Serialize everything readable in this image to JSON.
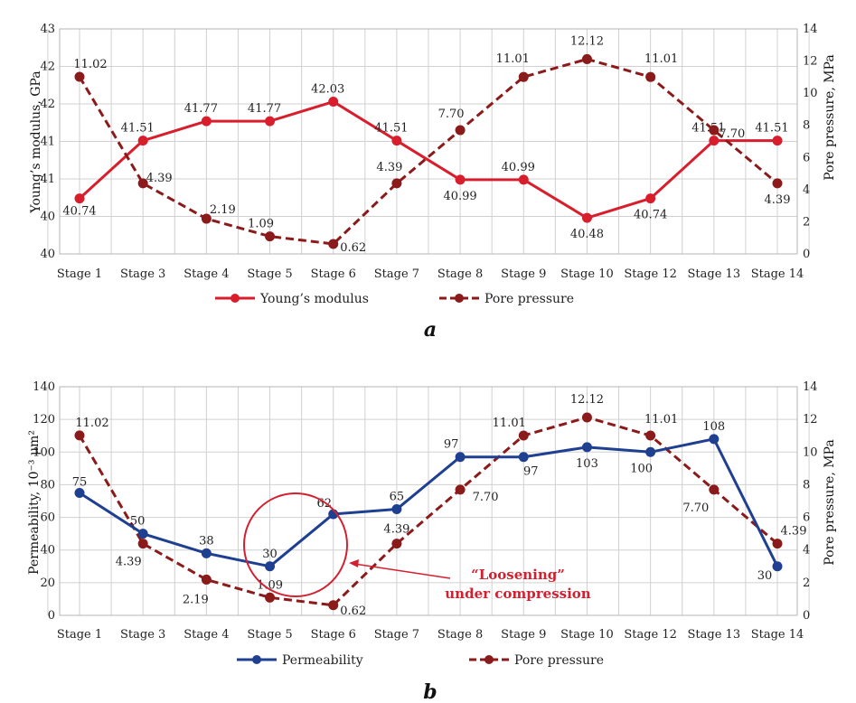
{
  "colors": {
    "young": "#d81e2c",
    "pore": "#8b1a1a",
    "perm": "#1f3f91",
    "grid": "#d0d0d0",
    "annotation": "#d32030"
  },
  "chart_data": [
    {
      "type": "line",
      "panel_label": "a",
      "categories": [
        "Stage 1",
        "Stage 3",
        "Stage 4",
        "Stage 5",
        "Stage 6",
        "Stage 7",
        "Stage 8",
        "Stage 9",
        "Stage 10",
        "Stage 12",
        "Stage 13",
        "Stage 14"
      ],
      "left_axis": {
        "label": "Young’s modulus, GPa",
        "tick_labels": [
          "40",
          "40",
          "41",
          "41",
          "42",
          "42",
          "43"
        ],
        "range": [
          40,
          43
        ]
      },
      "right_axis": {
        "label": "Pore pressure, MPa",
        "tick_labels": [
          "0",
          "2",
          "4",
          "6",
          "8",
          "10",
          "12",
          "14"
        ],
        "range": [
          0,
          14
        ]
      },
      "grid": true,
      "legend_position": "bottom",
      "series": [
        {
          "name": "Young’s modulus",
          "axis": "left",
          "style": "solid",
          "values": [
            40.74,
            41.51,
            41.77,
            41.77,
            42.03,
            41.51,
            40.99,
            40.99,
            40.48,
            40.74,
            41.51,
            41.51
          ],
          "labels": [
            "40.74",
            "41.51",
            "41.77",
            "41.77",
            "42.03",
            "41.51",
            "40.99",
            "40.99",
            "40.48",
            "40.74",
            "41.51",
            "41.51"
          ]
        },
        {
          "name": "Pore pressure",
          "axis": "right",
          "style": "dashed",
          "values": [
            11.02,
            4.39,
            2.19,
            1.09,
            0.62,
            4.39,
            7.7,
            11.01,
            12.12,
            11.01,
            7.7,
            4.39
          ],
          "labels": [
            "11.02",
            "4.39",
            "2.19",
            "1.09",
            "0.62",
            "4.39",
            "7.70",
            "11.01",
            "12.12",
            "11.01",
            "7.70",
            "4.39"
          ]
        }
      ]
    },
    {
      "type": "line",
      "panel_label": "b",
      "categories": [
        "Stage 1",
        "Stage 3",
        "Stage 4",
        "Stage 5",
        "Stage 6",
        "Stage 7",
        "Stage 8",
        "Stage 9",
        "Stage 10",
        "Stage 12",
        "Stage 13",
        "Stage 14"
      ],
      "left_axis": {
        "label": "Permeability, 10⁻³ μm²",
        "tick_labels": [
          "0",
          "20",
          "40",
          "60",
          "80",
          "100",
          "120",
          "140"
        ],
        "range": [
          0,
          140
        ]
      },
      "right_axis": {
        "label": "Pore pressure, MPa",
        "tick_labels": [
          "0",
          "2",
          "4",
          "6",
          "8",
          "10",
          "12",
          "14"
        ],
        "range": [
          0,
          14
        ]
      },
      "grid": true,
      "legend_position": "bottom",
      "annotation": {
        "line1": "“Loosening”",
        "line2": "under compression",
        "circled_categories": [
          "Stage 5",
          "Stage 6"
        ]
      },
      "series": [
        {
          "name": "Permeability",
          "axis": "left",
          "style": "solid",
          "values": [
            75,
            50,
            38,
            30,
            62,
            65,
            97,
            97,
            103,
            100,
            108,
            30
          ],
          "labels": [
            "75",
            "50",
            "38",
            "30",
            "62",
            "65",
            "97",
            "97",
            "103",
            "100",
            "108",
            "30"
          ]
        },
        {
          "name": "Pore pressure",
          "axis": "right",
          "style": "dashed",
          "values": [
            11.02,
            4.39,
            2.19,
            1.09,
            0.62,
            4.39,
            7.7,
            11.01,
            12.12,
            11.01,
            7.7,
            4.39
          ],
          "labels": [
            "11.02",
            "4.39",
            "2.19",
            "1.09",
            "0.62",
            "4.39",
            "7.70",
            "11.01",
            "12.12",
            "11.01",
            "7.70",
            "4.39"
          ]
        }
      ]
    }
  ]
}
